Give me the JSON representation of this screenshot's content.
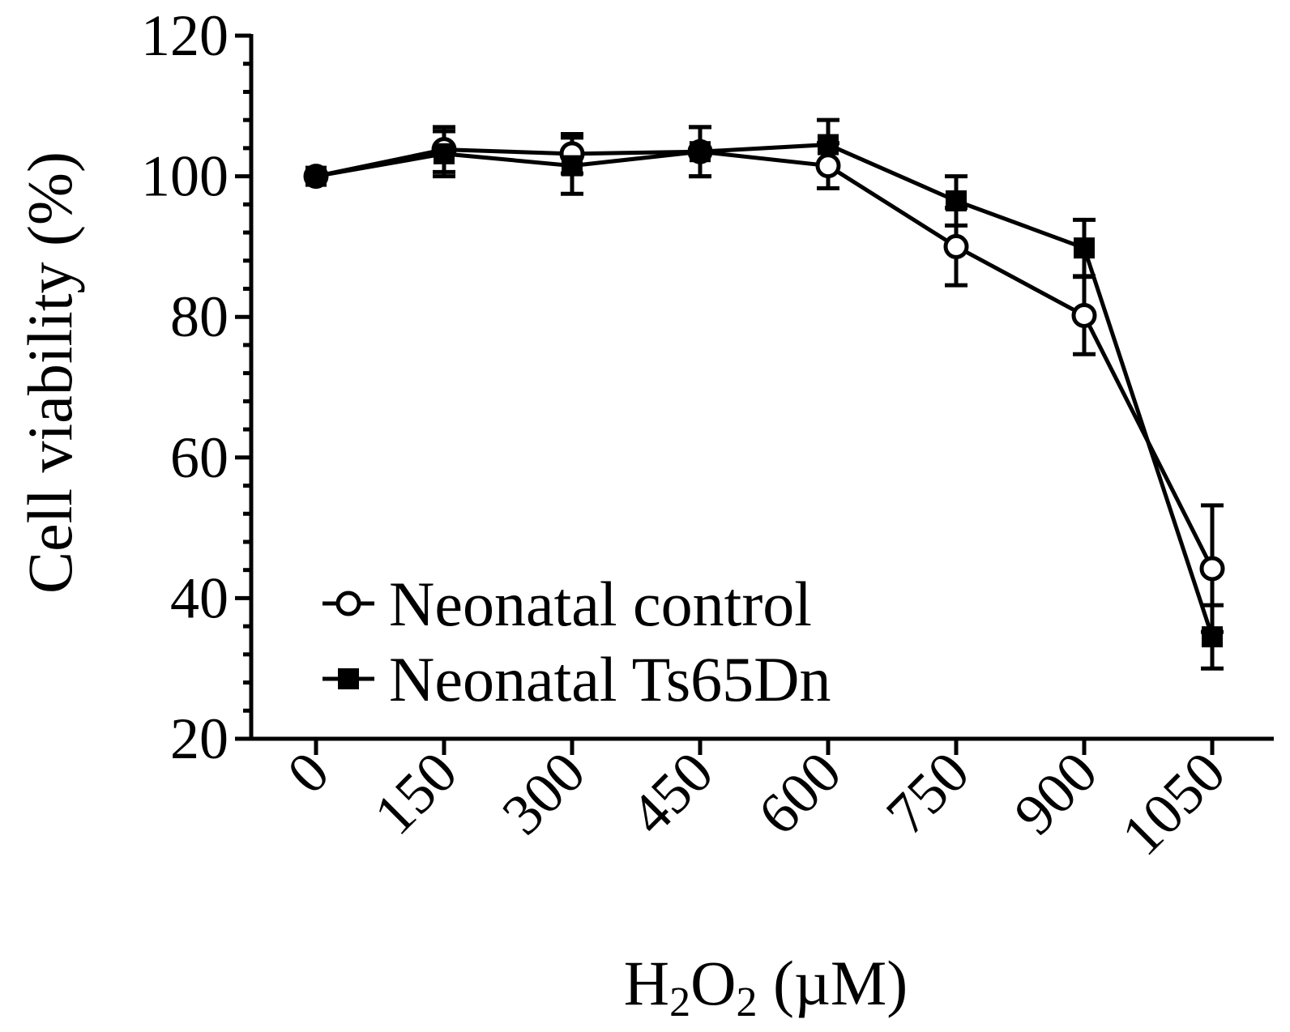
{
  "chart_data": {
    "type": "line",
    "title": "",
    "xlabel_main": "H",
    "xlabel_sub1": "2",
    "xlabel_mid": "O",
    "xlabel_sub2": "2",
    "xlabel_tail": " (µM)",
    "ylabel": "Cell viability (%)",
    "categories": [
      "0",
      "150",
      "300",
      "450",
      "600",
      "750",
      "900",
      "1050"
    ],
    "ylim": [
      20,
      120
    ],
    "yticks": [
      20,
      40,
      60,
      80,
      100,
      120
    ],
    "yticks_labels": [
      "20",
      "40",
      "60",
      "80",
      "100",
      "120"
    ],
    "grid": false,
    "legend_position": "bottom-left",
    "series": [
      {
        "name": "Neonatal control",
        "marker": "open-circle",
        "values": [
          100,
          103.8,
          103.2,
          103.5,
          101.5,
          90,
          80.2,
          44.2
        ],
        "errors": [
          0.5,
          3.2,
          2.8,
          3.5,
          3.2,
          5.5,
          5.5,
          9.0
        ]
      },
      {
        "name": "Neonatal Ts65Dn",
        "marker": "filled-square",
        "values": [
          100,
          103.2,
          101.5,
          103.5,
          104.5,
          96.5,
          89.8,
          34.5
        ],
        "errors": [
          0.5,
          3.2,
          4.0,
          3.5,
          3.5,
          3.5,
          4.0,
          4.5
        ]
      }
    ]
  }
}
